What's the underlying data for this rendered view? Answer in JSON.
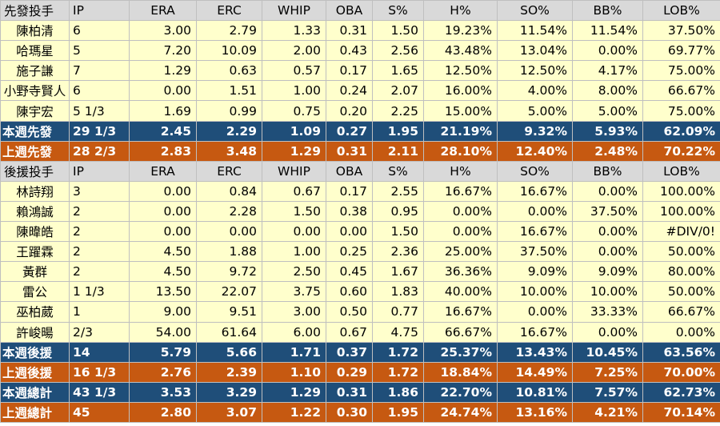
{
  "starters": {
    "header": [
      "先發投手",
      "IP",
      "ERA",
      "ERC",
      "WHIP",
      "OBA",
      "S%",
      "H%",
      "SO%",
      "BB%",
      "LOB%"
    ],
    "rows": [
      [
        "陳柏清",
        "6",
        "3.00",
        "2.79",
        "1.33",
        "0.31",
        "1.50",
        "19.23%",
        "11.54%",
        "11.54%",
        "37.50%"
      ],
      [
        "哈瑪星",
        "5",
        "7.20",
        "10.09",
        "2.00",
        "0.43",
        "2.56",
        "43.48%",
        "13.04%",
        "0.00%",
        "69.77%"
      ],
      [
        "施子謙",
        "7",
        "1.29",
        "0.63",
        "0.57",
        "0.17",
        "1.65",
        "12.50%",
        "12.50%",
        "4.17%",
        "75.00%"
      ],
      [
        "小野寺賢人",
        "6",
        "0.00",
        "1.51",
        "1.00",
        "0.24",
        "2.07",
        "16.00%",
        "4.00%",
        "8.00%",
        "66.67%"
      ],
      [
        "陳宇宏",
        "5 1/3",
        "1.69",
        "0.99",
        "0.75",
        "0.20",
        "2.25",
        "15.00%",
        "5.00%",
        "5.00%",
        "75.00%"
      ]
    ],
    "this_week": [
      "本週先發",
      "29 1/3",
      "2.45",
      "2.29",
      "1.09",
      "0.27",
      "1.95",
      "21.19%",
      "9.32%",
      "5.93%",
      "62.09%"
    ],
    "last_week": [
      "上週先發",
      "28 2/3",
      "2.83",
      "3.48",
      "1.29",
      "0.31",
      "2.11",
      "28.10%",
      "12.40%",
      "2.48%",
      "70.22%"
    ]
  },
  "relievers": {
    "header": [
      "後援投手",
      "IP",
      "ERA",
      "ERC",
      "WHIP",
      "OBA",
      "S%",
      "H%",
      "SO%",
      "BB%",
      "LOB%"
    ],
    "rows": [
      [
        "林詩翔",
        "3",
        "0.00",
        "0.84",
        "0.67",
        "0.17",
        "2.55",
        "16.67%",
        "16.67%",
        "0.00%",
        "100.00%"
      ],
      [
        "賴鴻誠",
        "2",
        "0.00",
        "2.28",
        "1.50",
        "0.38",
        "0.95",
        "0.00%",
        "0.00%",
        "37.50%",
        "100.00%"
      ],
      [
        "陳暐皓",
        "2",
        "0.00",
        "0.00",
        "0.00",
        "0.00",
        "1.50",
        "0.00%",
        "16.67%",
        "0.00%",
        "#DIV/0!"
      ],
      [
        "王躍霖",
        "2",
        "4.50",
        "1.88",
        "1.00",
        "0.25",
        "2.36",
        "25.00%",
        "37.50%",
        "0.00%",
        "50.00%"
      ],
      [
        "黃群",
        "2",
        "4.50",
        "9.72",
        "2.50",
        "0.45",
        "1.67",
        "36.36%",
        "9.09%",
        "9.09%",
        "80.00%"
      ],
      [
        "雷公",
        "1 1/3",
        "13.50",
        "22.07",
        "3.75",
        "0.60",
        "1.83",
        "40.00%",
        "10.00%",
        "10.00%",
        "50.00%"
      ],
      [
        "巫柏葳",
        "1",
        "9.00",
        "9.51",
        "3.00",
        "0.50",
        "0.77",
        "16.67%",
        "0.00%",
        "33.33%",
        "66.67%"
      ],
      [
        "許峻暘",
        "2/3",
        "54.00",
        "61.64",
        "6.00",
        "0.67",
        "4.75",
        "66.67%",
        "16.67%",
        "0.00%",
        "0.00%"
      ]
    ],
    "this_week": [
      "本週後援",
      "14",
      "5.79",
      "5.66",
      "1.71",
      "0.37",
      "1.72",
      "25.37%",
      "13.43%",
      "10.45%",
      "63.56%"
    ],
    "last_week": [
      "上週後援",
      "16 1/3",
      "2.76",
      "2.39",
      "1.10",
      "0.29",
      "1.72",
      "18.84%",
      "14.49%",
      "7.25%",
      "70.00%"
    ]
  },
  "totals": {
    "this_week": [
      "本週總計",
      "43 1/3",
      "3.53",
      "3.29",
      "1.29",
      "0.31",
      "1.86",
      "22.70%",
      "10.81%",
      "7.57%",
      "62.73%"
    ],
    "last_week": [
      "上週總計",
      "45",
      "2.80",
      "3.07",
      "1.22",
      "0.30",
      "1.95",
      "24.74%",
      "13.16%",
      "4.21%",
      "70.14%"
    ]
  }
}
